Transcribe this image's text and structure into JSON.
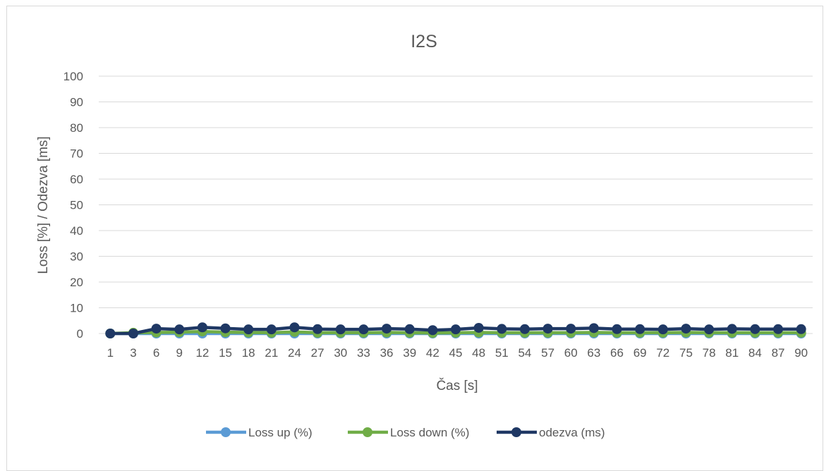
{
  "chart_data": {
    "type": "line",
    "title": "I2S",
    "xlabel": "Čas [s]",
    "ylabel": "Loss [%] / Odezva [ms]",
    "ylim": [
      0,
      100
    ],
    "yticks": [
      0,
      10,
      20,
      30,
      40,
      50,
      60,
      70,
      80,
      90,
      100
    ],
    "grid": true,
    "legend_position": "bottom",
    "categories": [
      "1",
      "3",
      "6",
      "9",
      "12",
      "15",
      "18",
      "21",
      "24",
      "27",
      "30",
      "33",
      "36",
      "39",
      "42",
      "45",
      "48",
      "51",
      "54",
      "57",
      "60",
      "63",
      "66",
      "69",
      "72",
      "75",
      "78",
      "81",
      "84",
      "87",
      "90"
    ],
    "series": [
      {
        "name": "Loss up (%)",
        "color": "#5b9bd5",
        "values": [
          0,
          0,
          0,
          0,
          0,
          0,
          0,
          0,
          0,
          0,
          0,
          0,
          0,
          0,
          0,
          0,
          0,
          0,
          0,
          0,
          0,
          0,
          0,
          0,
          0,
          0,
          0,
          0,
          0,
          0,
          0
        ]
      },
      {
        "name": "Loss down (%)",
        "color": "#70ad47",
        "values": [
          0,
          0.3,
          0.4,
          0.5,
          0.8,
          0.5,
          0.4,
          0.3,
          0.6,
          0.3,
          0.3,
          0.3,
          0.4,
          0.3,
          0.2,
          0.3,
          0.4,
          0.3,
          0.3,
          0.3,
          0.3,
          0.4,
          0.3,
          0.3,
          0.3,
          0.4,
          0.3,
          0.3,
          0.3,
          0.3,
          0.3
        ]
      },
      {
        "name": "odezva (ms)",
        "color": "#1f3864",
        "values": [
          0,
          0,
          1.9,
          1.6,
          2.4,
          2,
          1.6,
          1.6,
          2.4,
          1.7,
          1.6,
          1.6,
          1.9,
          1.7,
          1.3,
          1.6,
          2.2,
          1.8,
          1.7,
          1.9,
          1.9,
          2.1,
          1.7,
          1.7,
          1.6,
          1.9,
          1.6,
          1.8,
          1.7,
          1.7,
          1.7
        ]
      }
    ]
  }
}
